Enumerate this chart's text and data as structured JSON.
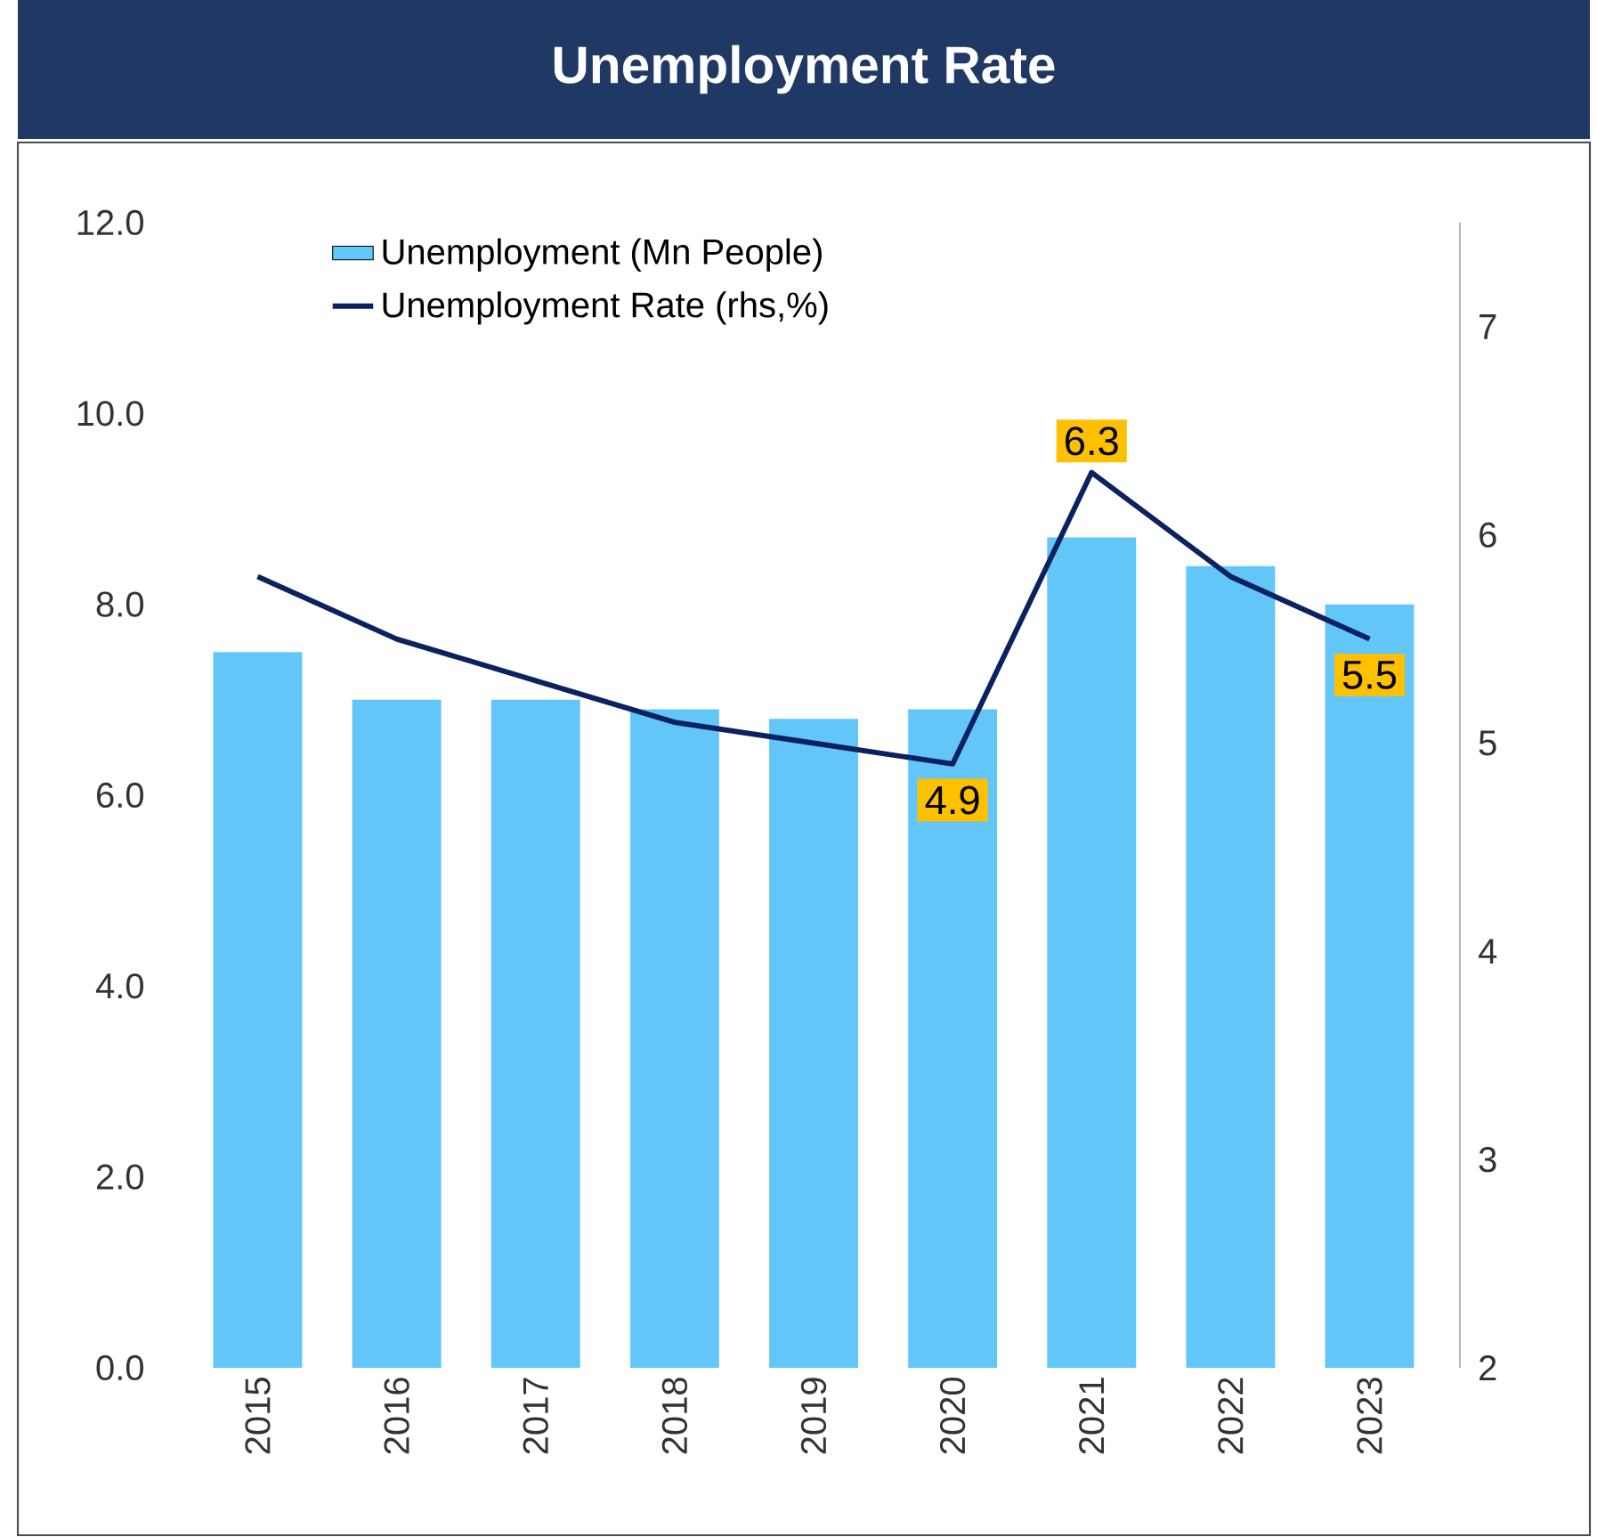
{
  "chart_data": {
    "type": "bar",
    "title": "Unemployment Rate",
    "categories": [
      "2015",
      "2016",
      "2017",
      "2018",
      "2019",
      "2020",
      "2021",
      "2022",
      "2023"
    ],
    "series": [
      {
        "name": "Unemployment (Mn People)",
        "color": "#63c6f8",
        "values": [
          7.5,
          7.0,
          7.0,
          6.9,
          6.8,
          6.9,
          8.7,
          8.4,
          8.0
        ]
      },
      {
        "name": "Unemployment Rate (rhs,%)",
        "type": "line",
        "axis": "y2",
        "color": "#0b2160",
        "values": [
          5.8,
          5.5,
          5.3,
          5.1,
          5.0,
          4.9,
          6.3,
          5.8,
          5.5
        ],
        "value_labels": [
          null,
          null,
          null,
          null,
          null,
          "4.9",
          "6.3",
          null,
          "5.5"
        ]
      }
    ],
    "ylim": [
      0,
      12
    ],
    "yticks": [
      {
        "value": 0,
        "label": "0.0"
      },
      {
        "value": 2,
        "label": "2.0"
      },
      {
        "value": 4,
        "label": "4.0"
      },
      {
        "value": 6,
        "label": "6.0"
      },
      {
        "value": 8,
        "label": "8.0"
      },
      {
        "value": 10,
        "label": "10.0"
      },
      {
        "value": 12,
        "label": "12.0"
      }
    ],
    "y2lim": [
      2,
      7.5
    ],
    "y2ticks": [
      2,
      3,
      4,
      5,
      6,
      7
    ],
    "legend": "top left",
    "grid": false
  }
}
